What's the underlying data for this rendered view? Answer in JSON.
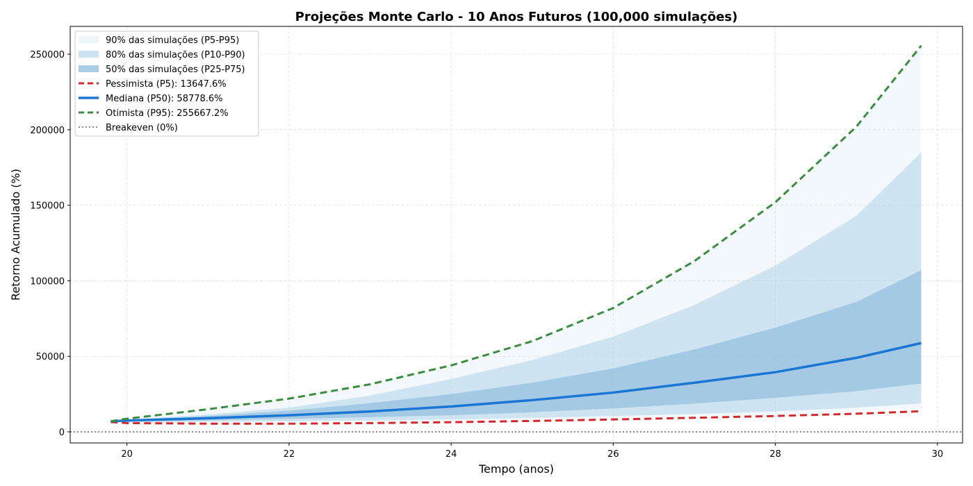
{
  "chart_data": {
    "type": "area",
    "title": "Projeções Monte Carlo - 10 Anos Futuros (100,000 simulações)",
    "xlabel": "Tempo (anos)",
    "ylabel": "Retorno Acumulado (%)",
    "xlim": [
      19.3,
      30.31
    ],
    "ylim": [
      -7350,
      268400
    ],
    "xticks": [
      20,
      22,
      24,
      26,
      28,
      30
    ],
    "yticks": [
      0,
      50000,
      100000,
      150000,
      200000,
      250000
    ],
    "grid": true,
    "legend_position": "top-left",
    "x": [
      19.8,
      20,
      21,
      22,
      23,
      24,
      25,
      26,
      27,
      28,
      29,
      29.8
    ],
    "bands": [
      {
        "name": "90% das simulações (P5-P95)",
        "color": "#d6e9f5",
        "opacity": 0.3,
        "lower": [
          6500,
          6000,
          6100,
          6300,
          6700,
          7200,
          8000,
          9000,
          10200,
          11500,
          13500,
          16000
        ],
        "upper": [
          7000,
          8600,
          15000,
          22000,
          31500,
          44000,
          60000,
          82000,
          113000,
          152000,
          202000,
          255000
        ]
      },
      {
        "name": "80% das simulações (P10-P90)",
        "color": "#a9cfe6",
        "opacity": 0.5,
        "lower": [
          6600,
          6300,
          6600,
          7000,
          7500,
          8200,
          9200,
          10500,
          11800,
          13500,
          16000,
          18800
        ],
        "upper": [
          7000,
          8000,
          11500,
          16000,
          24000,
          35000,
          47500,
          63000,
          84000,
          110000,
          143000,
          185000
        ]
      },
      {
        "name": "50% das simulações (P25-P75)",
        "color": "#7fb2d8",
        "opacity": 0.55,
        "lower": [
          6800,
          6800,
          7600,
          8600,
          9700,
          11000,
          13000,
          15500,
          18700,
          22500,
          27000,
          32000
        ],
        "upper": [
          7000,
          8000,
          10500,
          14000,
          19000,
          25000,
          32500,
          42000,
          54500,
          69000,
          86000,
          107000
        ]
      }
    ],
    "series": [
      {
        "name": "Pessimista (P5): 13647.6%",
        "color": "#d62728",
        "style": "dashed",
        "values": [
          6500,
          5800,
          5400,
          5400,
          5800,
          6400,
          7200,
          8200,
          9300,
          10500,
          12000,
          13647.6
        ]
      },
      {
        "name": "Mediana (P50): 58778.6%",
        "color": "#1976d2",
        "style": "solid",
        "values": [
          7000,
          7500,
          9000,
          11000,
          13500,
          16800,
          21000,
          26000,
          32500,
          39500,
          49000,
          58778.6
        ]
      },
      {
        "name": "Otimista (P95): 255667.2%",
        "color": "#388e3c",
        "style": "dashed",
        "values": [
          7000,
          8700,
          15000,
          22000,
          31500,
          44000,
          60000,
          82000,
          113000,
          152000,
          202000,
          255667.2
        ]
      },
      {
        "name": "Breakeven (0%)",
        "color": "#666666",
        "style": "dotted",
        "hline": 0
      }
    ]
  }
}
